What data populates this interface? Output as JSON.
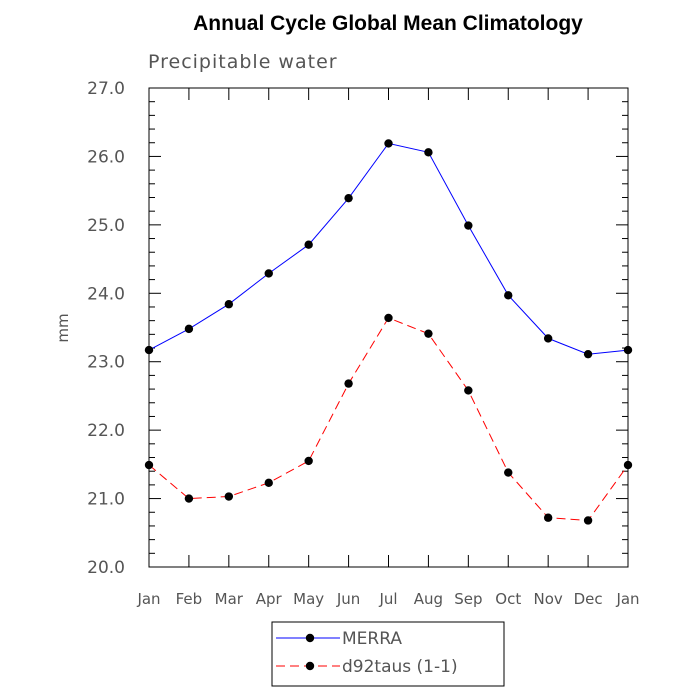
{
  "chart_data": {
    "type": "line",
    "title": "Annual Cycle Global Mean Climatology",
    "subtitle": "Precipitable water",
    "xlabel": "",
    "ylabel": "mm",
    "categories": [
      "Jan",
      "Feb",
      "Mar",
      "Apr",
      "May",
      "Jun",
      "Jul",
      "Aug",
      "Sep",
      "Oct",
      "Nov",
      "Dec",
      "Jan"
    ],
    "ylim": [
      20.0,
      27.0
    ],
    "yticks": [
      "20.0",
      "21.0",
      "22.0",
      "23.0",
      "24.0",
      "25.0",
      "26.0",
      "27.0"
    ],
    "grid": false,
    "legend_position": "bottom",
    "series": [
      {
        "name": "MERRA",
        "color": "#0000ff",
        "line_style": "solid",
        "marker": "filled-circle",
        "values": [
          23.17,
          23.48,
          23.84,
          24.29,
          24.71,
          25.39,
          26.19,
          26.06,
          24.99,
          23.97,
          23.34,
          23.11,
          23.17
        ]
      },
      {
        "name": "d92taus (1-1)",
        "color": "#ff0000",
        "line_style": "dashed",
        "marker": "filled-circle",
        "values": [
          21.49,
          21.0,
          21.03,
          21.23,
          21.55,
          22.68,
          23.64,
          23.41,
          22.58,
          21.38,
          20.72,
          20.68,
          21.49
        ]
      }
    ]
  }
}
